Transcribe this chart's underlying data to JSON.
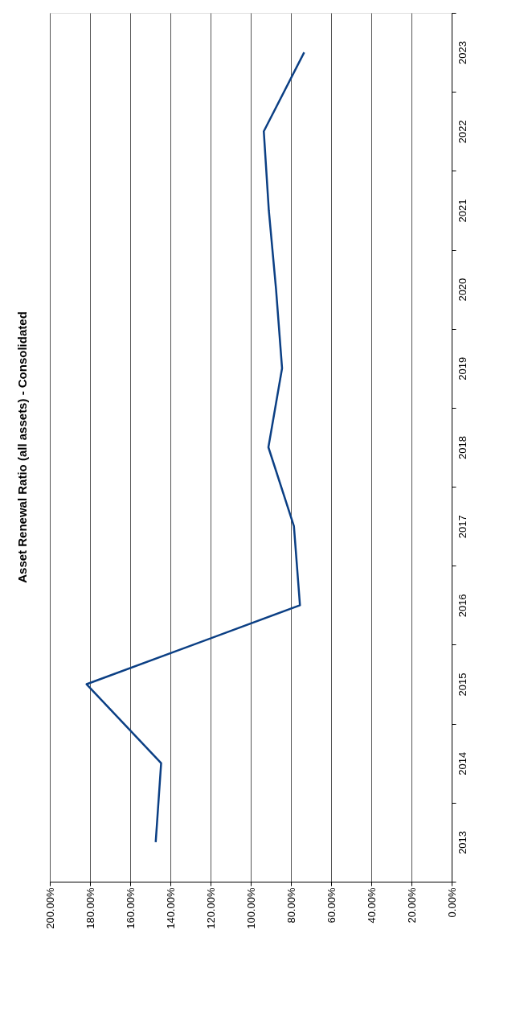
{
  "chart_data": {
    "type": "line",
    "title": "Asset Renewal Ratio (all assets) - Consolidated",
    "orientation": "horizontal",
    "categories": [
      "2023",
      "2022",
      "2021",
      "2020",
      "2019",
      "2018",
      "2017",
      "2016",
      "2015",
      "2014",
      "2013"
    ],
    "series": [
      {
        "color": "#0b3f84",
        "values": [
          73.4,
          93.5,
          91,
          87.4,
          84.4,
          91.2,
          78.5,
          75.5,
          181.7,
          144.6,
          147.3
        ]
      }
    ],
    "xlim": [
      200,
      0
    ],
    "xticks": [
      {
        "value": 200,
        "label": "200.00%"
      },
      {
        "value": 180,
        "label": "180.00%"
      },
      {
        "value": 160,
        "label": "160.00%"
      },
      {
        "value": 140,
        "label": "140.00%"
      },
      {
        "value": 120,
        "label": "120.00%"
      },
      {
        "value": 100,
        "label": "100.00%"
      },
      {
        "value": 80,
        "label": "80.00%"
      },
      {
        "value": 60,
        "label": "60.00%"
      },
      {
        "value": 40,
        "label": "40.00%"
      },
      {
        "value": 20,
        "label": "20.00%"
      },
      {
        "value": 0,
        "label": "0.00%"
      }
    ],
    "grid": "x",
    "marker": "none",
    "line_style": "solid"
  }
}
